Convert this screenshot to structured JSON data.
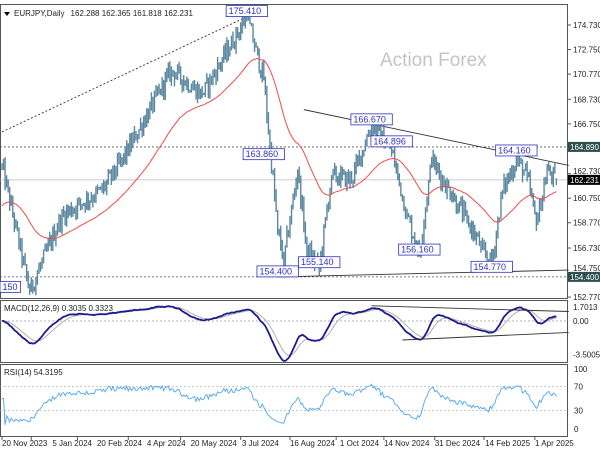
{
  "header": {
    "symbol": "EURJPY,Daily",
    "ohlc": "162.288 162.365 161.818 162.231"
  },
  "watermark": "Action Forex",
  "colors": {
    "bars": "#5b87a0",
    "bar_outline": "#3d6378",
    "ma": "#f04a4a",
    "macd": "#1c1c8c",
    "signal": "#b0b0b0",
    "rsi": "#4da6f5",
    "label_box": "#3030c0",
    "axis_tag_bg": "#2f4f4f"
  },
  "chart_data": {
    "type": "ohlc-bar",
    "title": "EURJPY,Daily",
    "last": {
      "open": 162.288,
      "high": 162.365,
      "low": 161.818,
      "close": 162.231
    },
    "ylim": [
      152.4,
      175.9
    ],
    "bars_total": 361,
    "price_pivots": [
      [
        0,
        163.4
      ],
      [
        18,
        153.2
      ],
      [
        39,
        159.4
      ],
      [
        65,
        161.4
      ],
      [
        78,
        163.8
      ],
      [
        110,
        171.1
      ],
      [
        130,
        169.1
      ],
      [
        159,
        175.4
      ],
      [
        170,
        170.3
      ],
      [
        179,
        158.2
      ],
      [
        183,
        155.8
      ],
      [
        192,
        163.0
      ],
      [
        198,
        156.6
      ],
      [
        206,
        155.1
      ],
      [
        214,
        162.6
      ],
      [
        227,
        162.2
      ],
      [
        240,
        166.7
      ],
      [
        253,
        164.6
      ],
      [
        263,
        159.4
      ],
      [
        271,
        156.2
      ],
      [
        279,
        163.8
      ],
      [
        292,
        161.0
      ],
      [
        302,
        159.0
      ],
      [
        312,
        156.6
      ],
      [
        318,
        155.4
      ],
      [
        325,
        161.4
      ],
      [
        334,
        163.8
      ],
      [
        341,
        162.6
      ],
      [
        347,
        158.6
      ],
      [
        354,
        163.0
      ],
      [
        360,
        162.231
      ]
    ],
    "price_ticks": [
      "174.730",
      "172.750",
      "170.770",
      "168.730",
      "166.750",
      "162.730",
      "160.750",
      "158.770",
      "156.730",
      "154.750",
      "152.770"
    ],
    "price_tags": [
      {
        "value": "164.890",
        "kind": "level"
      },
      {
        "value": "162.231",
        "kind": "current"
      },
      {
        "value": "154.400",
        "kind": "level"
      }
    ],
    "horizontal_levels": [
      164.89,
      154.4
    ],
    "annotations": [
      {
        "text": "175.410",
        "bar": 159,
        "price": 175.41
      },
      {
        "text": "166.670",
        "bar": 240,
        "price": 166.67
      },
      {
        "text": "164.896",
        "bar": 253,
        "price": 164.896
      },
      {
        "text": "164.160",
        "bar": 334,
        "price": 164.16
      },
      {
        "text": "163.860",
        "bar": 170,
        "price": 163.86
      },
      {
        "text": "155.140",
        "bar": 206,
        "price": 155.14
      },
      {
        "text": "156.160",
        "bar": 271,
        "price": 156.16
      },
      {
        "text": "154.400",
        "bar": 179,
        "price": 154.4
      },
      {
        "text": "154.770",
        "bar": 318,
        "price": 154.77
      },
      {
        "text": "150",
        "bar": 0,
        "price": 153.15
      }
    ],
    "trendlines": [
      {
        "style": "dotted",
        "from": [
          0,
          166.1
        ],
        "to": [
          159,
          175.4
        ]
      },
      {
        "style": "solid",
        "from": [
          196,
          167.9
        ],
        "to": [
          368,
          163.4
        ]
      },
      {
        "style": "solid",
        "from": [
          179,
          154.4
        ],
        "to": [
          368,
          154.95
        ]
      }
    ],
    "ma": {
      "type": "EMA",
      "period": 50
    },
    "macd": {
      "label": "MACD(12,26,9) 0.3035 0.3323",
      "ticks": [
        "1.7013",
        "0.00",
        "-3.5005"
      ],
      "tick_values": [
        1.7013,
        0,
        -3.5005
      ],
      "trendlines": [
        {
          "from": [
            240,
            1.6
          ],
          "to": [
            368,
            1.0
          ]
        },
        {
          "from": [
            260,
            -2.0
          ],
          "to": [
            368,
            -1.2
          ]
        }
      ]
    },
    "rsi": {
      "label": "RSI(14) 54.3195",
      "ticks": [
        "100",
        "70",
        "30",
        "0"
      ],
      "tick_values": [
        100,
        70,
        30,
        0
      ]
    },
    "x_labels": [
      {
        "text": "20 Nov 2023",
        "bar": 0
      },
      {
        "text": "5 Jan 2024",
        "bar": 19
      },
      {
        "text": "20 Feb 2024",
        "bar": 49
      },
      {
        "text": "4 Apr 2024",
        "bar": 82
      },
      {
        "text": "20 May 2024",
        "bar": 116
      },
      {
        "text": "3 Jul 2024",
        "bar": 155
      },
      {
        "text": "16 Aug 2024",
        "bar": 187
      },
      {
        "text": "1 Oct 2024",
        "bar": 217
      },
      {
        "text": "14 Nov 2024",
        "bar": 248
      },
      {
        "text": "31 Dec 2024",
        "bar": 281
      },
      {
        "text": "14 Feb 2025",
        "bar": 313
      },
      {
        "text": "1 Apr 2025",
        "bar": 346
      }
    ]
  }
}
